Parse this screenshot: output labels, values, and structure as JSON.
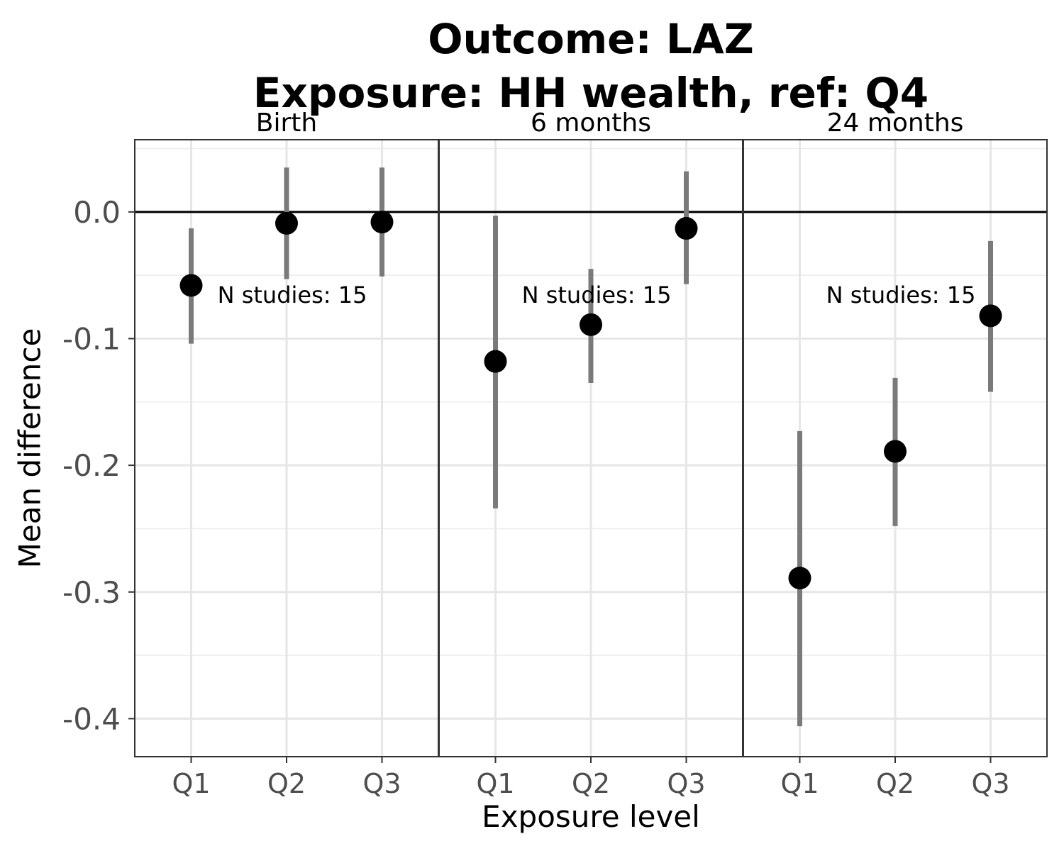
{
  "chart_data": {
    "type": "scatter",
    "title": "Outcome: LAZ",
    "subtitle": "Exposure: HH wealth, ref: Q4",
    "xlabel": "Exposure level",
    "ylabel": "Mean difference",
    "ylim": [
      -0.43,
      0.057
    ],
    "yticks": [
      0.0,
      -0.1,
      -0.2,
      -0.3,
      -0.4
    ],
    "ytick_labels": [
      "0.0",
      "-0.1",
      "-0.2",
      "-0.3",
      "-0.4"
    ],
    "categories": [
      "Q1",
      "Q2",
      "Q3"
    ],
    "reference_line": 0,
    "grid": true,
    "panels": [
      {
        "label": "Birth",
        "annotation": "N studies: 15",
        "points": [
          {
            "x": "Q1",
            "y": -0.058,
            "lower": -0.104,
            "upper": -0.013
          },
          {
            "x": "Q2",
            "y": -0.009,
            "lower": -0.053,
            "upper": 0.035
          },
          {
            "x": "Q3",
            "y": -0.008,
            "lower": -0.051,
            "upper": 0.035
          }
        ]
      },
      {
        "label": "6 months",
        "annotation": "N studies: 15",
        "points": [
          {
            "x": "Q1",
            "y": -0.118,
            "lower": -0.234,
            "upper": -0.003
          },
          {
            "x": "Q2",
            "y": -0.089,
            "lower": -0.135,
            "upper": -0.045
          },
          {
            "x": "Q3",
            "y": -0.013,
            "lower": -0.057,
            "upper": 0.032
          }
        ]
      },
      {
        "label": "24 months",
        "annotation": "N studies: 15",
        "points": [
          {
            "x": "Q1",
            "y": -0.289,
            "lower": -0.406,
            "upper": -0.173
          },
          {
            "x": "Q2",
            "y": -0.189,
            "lower": -0.248,
            "upper": -0.131
          },
          {
            "x": "Q3",
            "y": -0.082,
            "lower": -0.142,
            "upper": -0.023
          }
        ]
      }
    ]
  }
}
